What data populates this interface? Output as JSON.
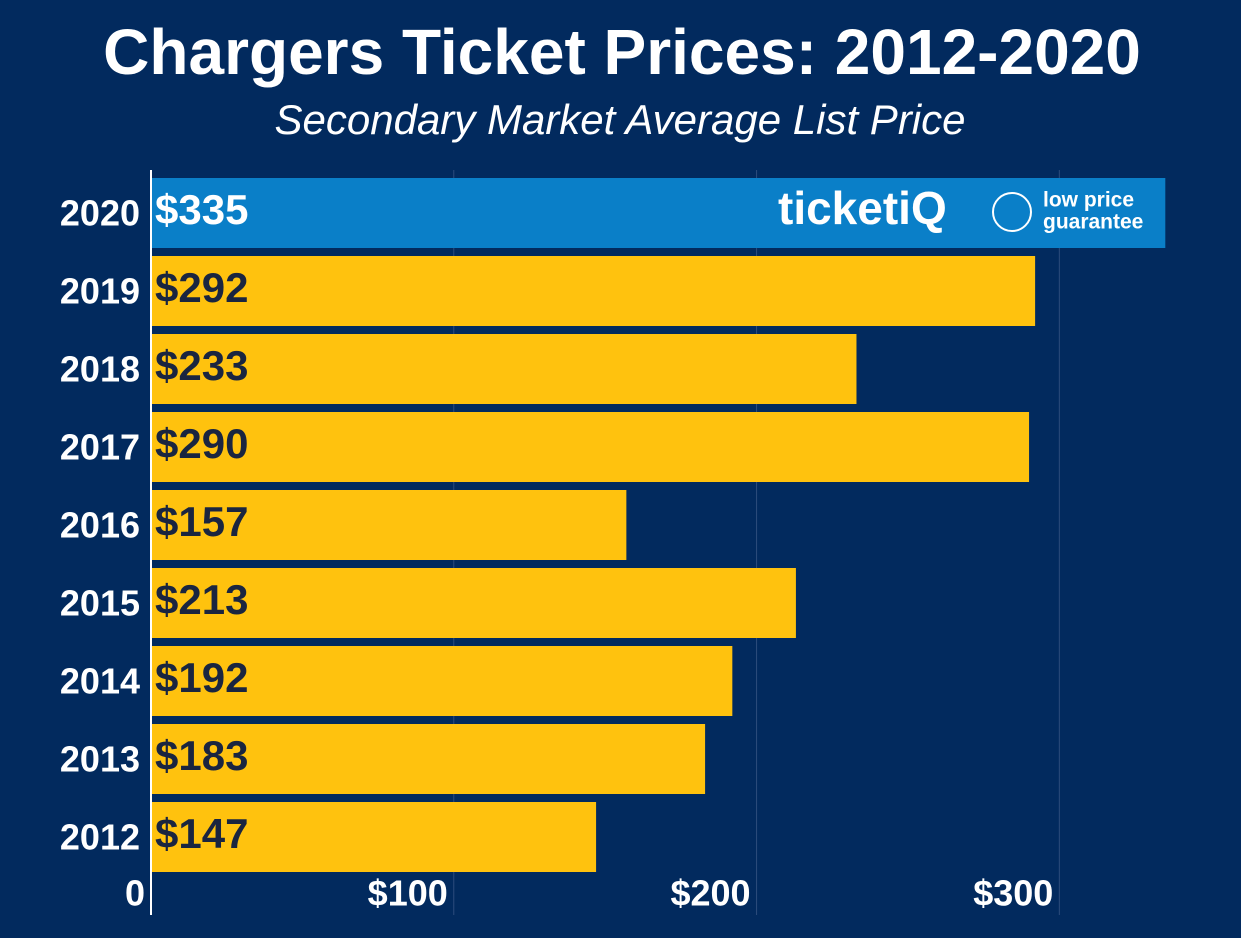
{
  "chart_data": {
    "type": "bar",
    "orientation": "horizontal",
    "title": "Chargers Ticket Prices: 2012-2020",
    "subtitle": "Secondary Market Average List Price",
    "categories": [
      "2020",
      "2019",
      "2018",
      "2017",
      "2016",
      "2015",
      "2014",
      "2013",
      "2012"
    ],
    "values": [
      335,
      292,
      233,
      290,
      157,
      213,
      192,
      183,
      147
    ],
    "value_labels": [
      "$335",
      "$292",
      "$233",
      "$290",
      "$157",
      "$213",
      "$192",
      "$183",
      "$147"
    ],
    "colors": [
      "#0a7fc8",
      "#ffc20e",
      "#ffc20e",
      "#ffc20e",
      "#ffc20e",
      "#ffc20e",
      "#ffc20e",
      "#ffc20e",
      "#ffc20e"
    ],
    "xlim": [
      0,
      360
    ],
    "xticks": [
      0,
      {
        "value": 100,
        "label": "$100"
      },
      {
        "value": 200,
        "label": "$200"
      },
      {
        "value": 300,
        "label": "$300"
      }
    ],
    "grid": true,
    "logo": {
      "brand": "ticketiQ",
      "tagline_1": "low price",
      "tagline_2": "guarantee"
    }
  }
}
